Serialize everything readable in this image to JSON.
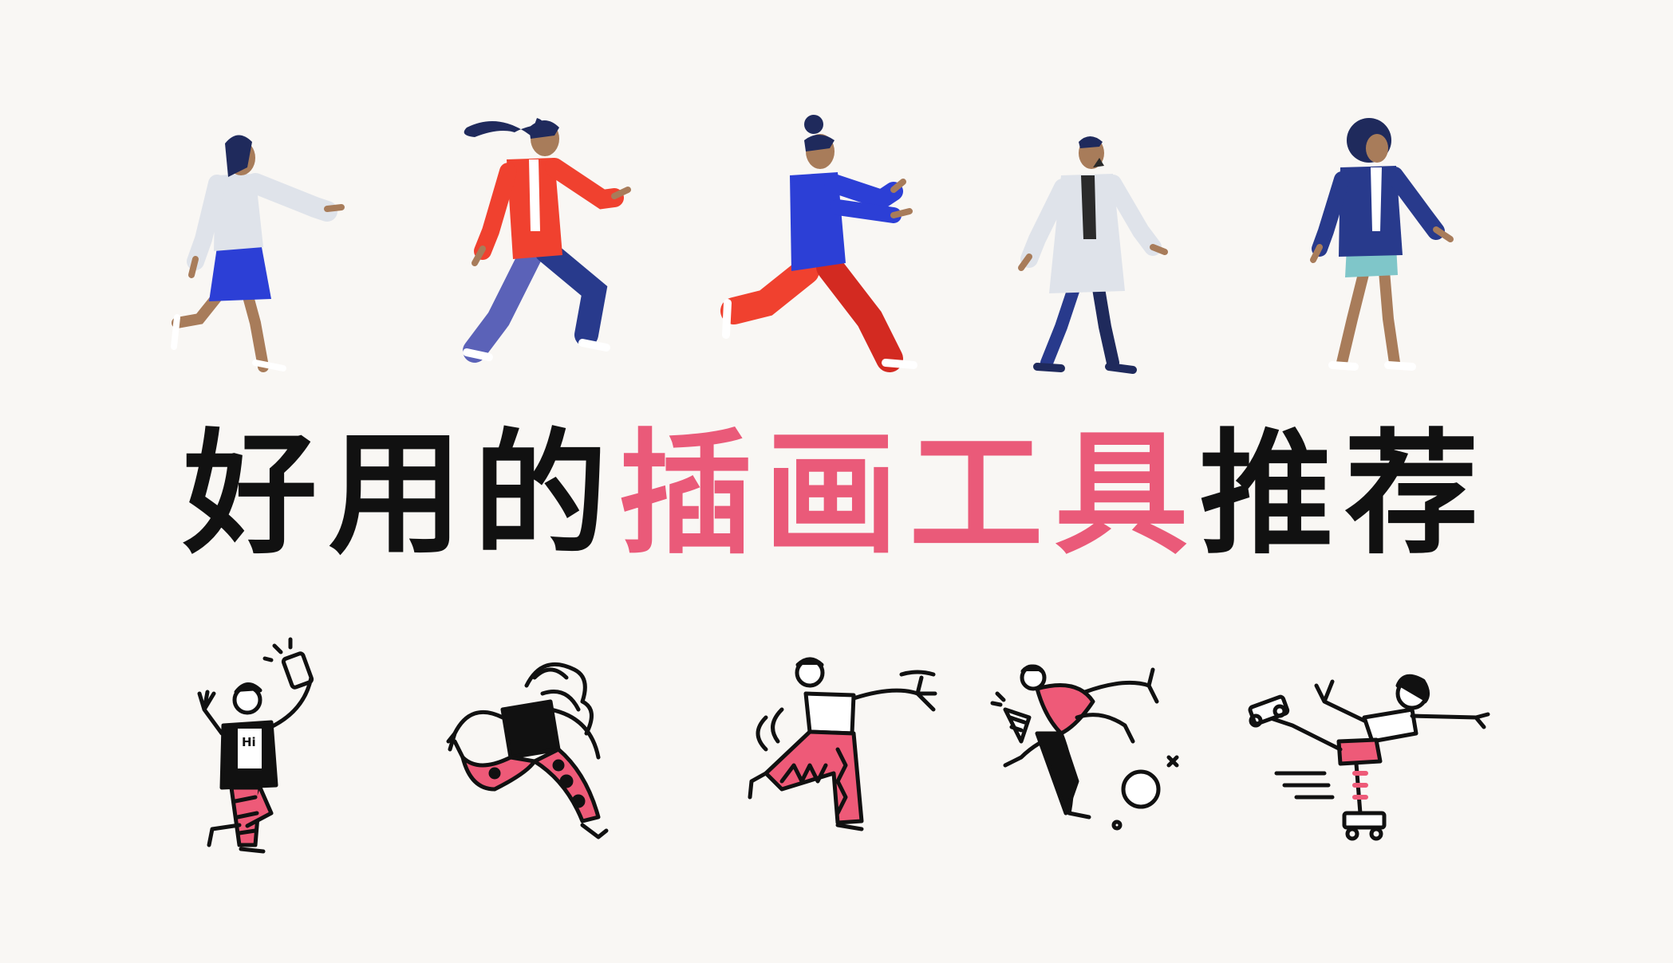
{
  "headline": {
    "part1": "好用的",
    "part2": "插画工具",
    "part3": "推荐"
  },
  "colors": {
    "background": "#f9f7f4",
    "title_black": "#111111",
    "title_pink": "#ea5a79",
    "navy": "#1f2a5c",
    "royal_blue": "#2c3fd6",
    "red": "#f0412f",
    "skin": "#a87c5a",
    "light_grey": "#dfe3ea",
    "doodle_pink": "#ee5a78"
  },
  "doodle_badge": "Hi"
}
